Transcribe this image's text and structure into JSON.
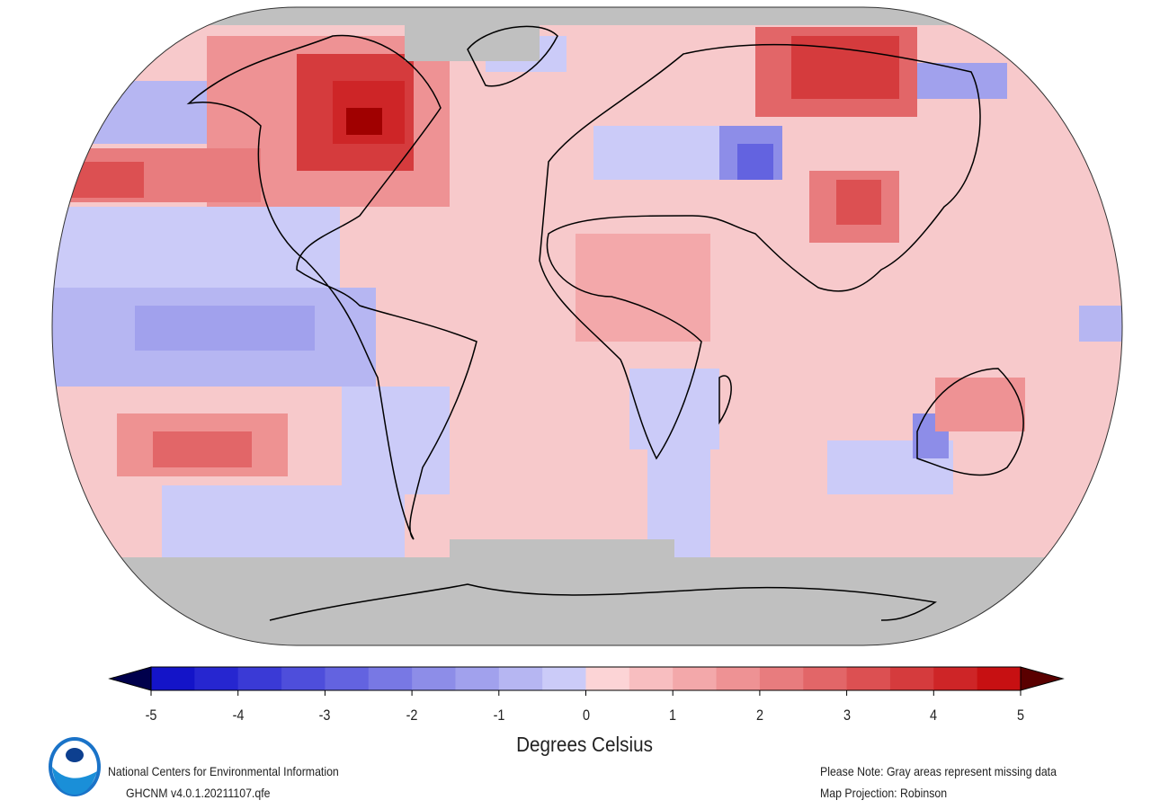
{
  "map": {
    "projection_note": "Map Projection: Robinson",
    "missing_note": "Please Note: Gray areas represent missing data",
    "colors": {
      "missing": "#c0c0c0",
      "background_anomaly": "#f7c9cb",
      "coastline": "#000000"
    }
  },
  "colorbar": {
    "label": "Degrees Celsius",
    "min": -5,
    "max": 5,
    "step": 0.5,
    "ticks": [
      "-5",
      "-4",
      "-3",
      "-2",
      "-1",
      "0",
      "1",
      "2",
      "3",
      "4",
      "5"
    ],
    "colors": [
      "#1414c8",
      "#2626d0",
      "#3a3ad6",
      "#4e4edb",
      "#6363e0",
      "#7878e4",
      "#8d8de8",
      "#a1a1ed",
      "#b6b6f2",
      "#cbcbf8",
      "#fcd4d6",
      "#f8bec0",
      "#f3a8aa",
      "#ee9294",
      "#e87c7e",
      "#e26668",
      "#dc5052",
      "#d53b3d",
      "#ce2527",
      "#c71012"
    ],
    "under_color": "#00004c",
    "over_color": "#5a0000"
  },
  "footer": {
    "org": "National Centers for Environmental Information",
    "dataset": "GHCNM v4.0.1.20211107.qfe",
    "logo_text": "NOAA"
  }
}
